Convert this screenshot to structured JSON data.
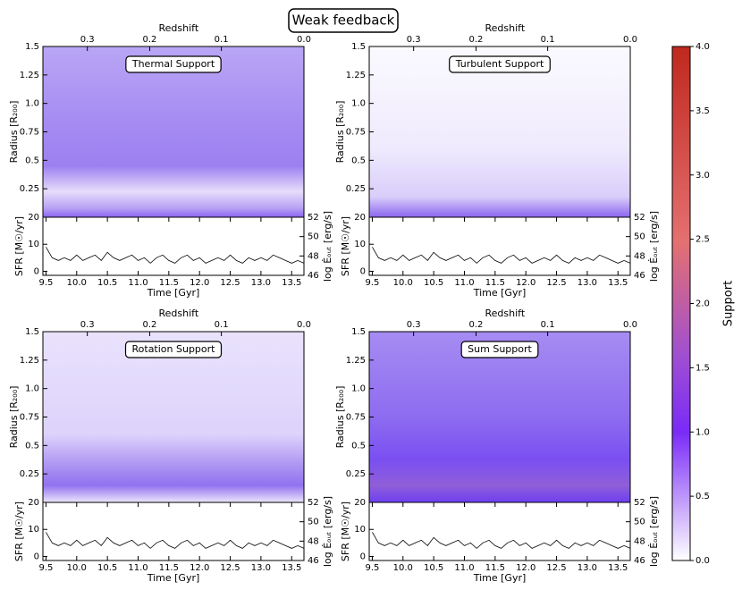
{
  "chart_data": {
    "type": "heatmap-grid",
    "title": "Weak feedback",
    "panels": [
      {
        "annotation": "Thermal Support",
        "annotation_color": "#e00000"
      },
      {
        "annotation": "Turbulent Support",
        "annotation_color": "#008000"
      },
      {
        "annotation": "Rotation Support",
        "annotation_color": "#0000d0"
      },
      {
        "annotation": "Sum Support",
        "annotation_color": "#000000"
      }
    ],
    "ylabel": "Radius [R₂₀₀]",
    "ylim": [
      0,
      1.5
    ],
    "yticks": [
      0.25,
      {
        "value": 0.5,
        "label": "0.5"
      },
      0.75,
      {
        "value": 1.0,
        "label": "1.0"
      },
      1.25,
      1.5
    ],
    "x2label": "Redshift",
    "x2ticks": [
      0.3,
      0.2,
      0.1,
      {
        "value": 0,
        "label": "0.0"
      }
    ],
    "xlabel": "Time [Gyr]",
    "xlim": [
      9.45,
      13.7
    ],
    "xticks": [
      9.5,
      {
        "value": 10,
        "label": "10.0"
      },
      10.5,
      {
        "value": 11,
        "label": "11.0"
      },
      11.5,
      {
        "value": 12,
        "label": "12.0"
      },
      12.5,
      {
        "value": 13,
        "label": "13.0"
      },
      13.5
    ],
    "sfr": {
      "ylabel": "SFR [M☉/yr]",
      "ylim": [
        -1.5,
        20
      ],
      "yticks": [
        0,
        10,
        20
      ],
      "y2label": "log Ėₒᵤₜ [erg/s]",
      "y2lim": [
        46,
        52
      ],
      "y2ticks": [
        46,
        48,
        50,
        52
      ],
      "color": "#000000",
      "x": [
        9.5,
        9.6,
        9.7,
        9.8,
        9.9,
        10.0,
        10.1,
        10.2,
        10.3,
        10.4,
        10.5,
        10.6,
        10.7,
        10.8,
        10.9,
        11.0,
        11.1,
        11.2,
        11.3,
        11.4,
        11.5,
        11.6,
        11.7,
        11.8,
        11.9,
        12.0,
        12.1,
        12.2,
        12.3,
        12.4,
        12.5,
        12.6,
        12.7,
        12.8,
        12.9,
        13.0,
        13.1,
        13.2,
        13.3,
        13.4,
        13.5,
        13.6,
        13.7
      ],
      "values": [
        9,
        5,
        4,
        5,
        4,
        6,
        4,
        5,
        6,
        4,
        7,
        5,
        4,
        5,
        6,
        4,
        5,
        3,
        5,
        6,
        4,
        3,
        5,
        6,
        4,
        5,
        3,
        4,
        5,
        4,
        6,
        4,
        3,
        5,
        4,
        5,
        4,
        6,
        5,
        4,
        3,
        4,
        3
      ]
    },
    "colorbar": {
      "label": "Support",
      "lim": [
        0,
        4
      ],
      "ticks": [
        {
          "value": 0,
          "label": "0.0"
        },
        0.5,
        {
          "value": 1,
          "label": "1.0"
        },
        1.5,
        {
          "value": 2,
          "label": "2.0"
        },
        2.5,
        {
          "value": 3,
          "label": "3.0"
        },
        3.5,
        {
          "value": 4,
          "label": "4.0"
        }
      ]
    }
  }
}
